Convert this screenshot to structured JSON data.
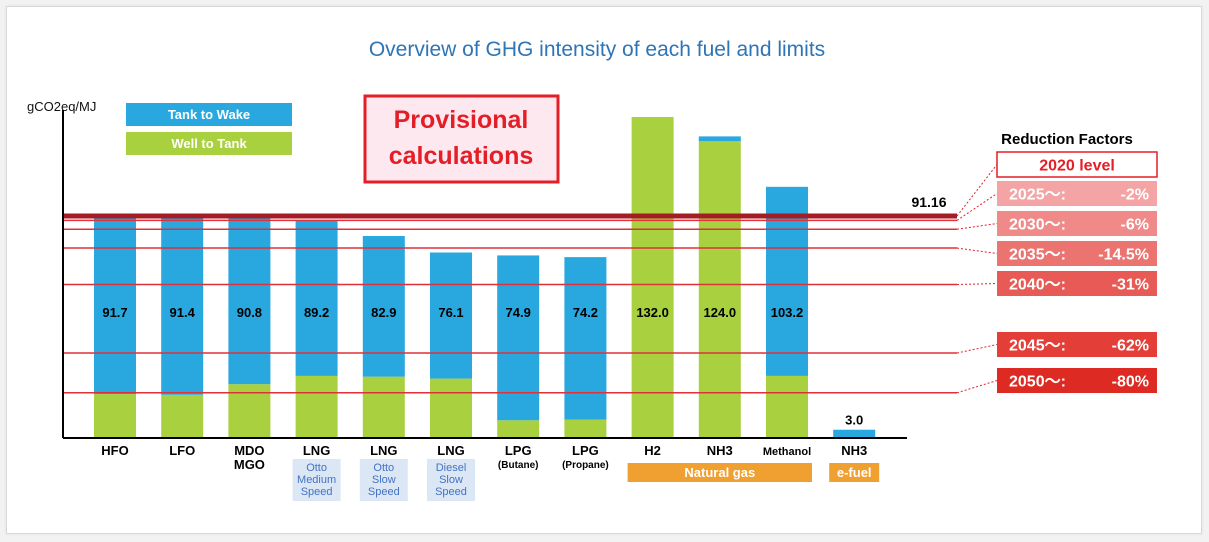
{
  "colors": {
    "tank_to_wake": "#29a8e0",
    "well_to_tank": "#a9d03f",
    "title": "#2e75b6",
    "limit_line": "#e0303a",
    "baseline_line": "#a61c24",
    "group_fill": "#f0a030",
    "sublabel_fill": "#dbe7f5",
    "sublabel_text": "#4472c4"
  },
  "chart_data": {
    "type": "bar",
    "stacked": true,
    "title": "Overview of GHG intensity of each fuel and limits",
    "ylabel": "gCO2eq/MJ",
    "ylim": [
      0,
      145
    ],
    "categories": [
      {
        "label": "HFO",
        "sub": []
      },
      {
        "label": "LFO",
        "sub": []
      },
      {
        "label": "MDO",
        "label2": "MGO",
        "sub": []
      },
      {
        "label": "LNG",
        "sub": [
          "Otto",
          "Medium",
          "Speed"
        ]
      },
      {
        "label": "LNG",
        "sub": [
          "Otto",
          "Slow",
          "Speed"
        ]
      },
      {
        "label": "LNG",
        "sub": [
          "Diesel",
          "Slow",
          "Speed"
        ]
      },
      {
        "label": "LPG",
        "label2": "(Butane)",
        "sub": []
      },
      {
        "label": "LPG",
        "label2": "(Propane)",
        "sub": []
      },
      {
        "label": "H2",
        "sub": []
      },
      {
        "label": "NH3",
        "sub": []
      },
      {
        "label": "Methanol",
        "sub": []
      },
      {
        "label": "NH3",
        "sub": []
      }
    ],
    "series": [
      {
        "name": "Tank to Wake",
        "values": [
          74,
          74,
          69,
          64,
          58,
          52,
          68,
          67,
          0,
          2,
          78,
          3
        ]
      },
      {
        "name": "Well to Tank",
        "values": [
          17.7,
          17.4,
          21.8,
          25.2,
          24.9,
          24.1,
          6.9,
          7.2,
          132,
          122,
          25.2,
          0
        ]
      }
    ],
    "totals": [
      "91.7",
      "91.4",
      "90.8",
      "89.2",
      "82.9",
      "76.1",
      "74.9",
      "74.2",
      "132.0",
      "124.0",
      "103.2",
      "3.0"
    ],
    "groups": [
      {
        "label": "Natural gas",
        "from": 8,
        "to": 10
      },
      {
        "label": "e-fuel",
        "from": 11,
        "to": 11
      }
    ],
    "legend": {
      "position": "top-left"
    },
    "annotation": "Provisional calculations",
    "baseline": {
      "value": 91.16,
      "label": "91.16"
    },
    "reduction_header": "Reduction Factors",
    "reduction_factors": [
      {
        "year": "2020 level",
        "pct": "",
        "value": 91.16
      },
      {
        "year": "2025～:",
        "pct": "-2%",
        "value": 89.34
      },
      {
        "year": "2030～:",
        "pct": "-6%",
        "value": 85.69
      },
      {
        "year": "2035～:",
        "pct": "-14.5%",
        "value": 77.94
      },
      {
        "year": "2040～:",
        "pct": "-31%",
        "value": 62.9
      },
      {
        "year": "2045～:",
        "pct": "-62%",
        "value": 34.64
      },
      {
        "year": "2050～:",
        "pct": "-80%",
        "value": 18.23
      }
    ]
  }
}
